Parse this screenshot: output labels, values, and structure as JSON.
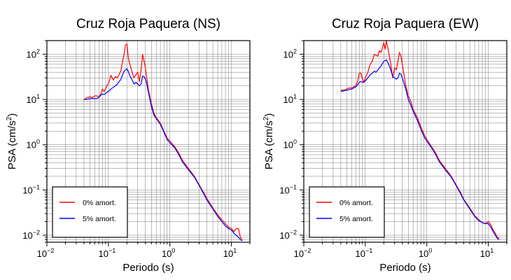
{
  "chart_data": [
    {
      "type": "line",
      "title": "Cruz Roja Paquera (NS)",
      "xlabel": "Periodo (s)",
      "ylabel": "PSA (cm/s",
      "ylabel_sup": "2",
      "ylabel_close": ")",
      "x_scale": "log",
      "y_scale": "log",
      "xlim": [
        0.01,
        20
      ],
      "ylim": [
        0.007,
        200
      ],
      "grid": true,
      "legend_placement": "bottom-left",
      "x_ticks": [
        {
          "value": 0.01,
          "base": "10",
          "exp": "−2"
        },
        {
          "value": 0.1,
          "base": "10",
          "exp": "−1"
        },
        {
          "value": 1,
          "base": "10",
          "exp": "0"
        },
        {
          "value": 10,
          "base": "10",
          "exp": "1"
        }
      ],
      "y_ticks": [
        {
          "value": 0.01,
          "base": "10",
          "exp": "−2"
        },
        {
          "value": 0.1,
          "base": "10",
          "exp": "−1"
        },
        {
          "value": 1,
          "base": "10",
          "exp": "0"
        },
        {
          "value": 10,
          "base": "10",
          "exp": "1"
        },
        {
          "value": 100,
          "base": "10",
          "exp": "2"
        }
      ],
      "series": [
        {
          "name": "0% amort.",
          "color": "#ff0000",
          "x": [
            0.04,
            0.045,
            0.05,
            0.055,
            0.06,
            0.065,
            0.07,
            0.075,
            0.08,
            0.085,
            0.09,
            0.095,
            0.1,
            0.11,
            0.12,
            0.13,
            0.14,
            0.15,
            0.16,
            0.17,
            0.18,
            0.19,
            0.2,
            0.21,
            0.22,
            0.24,
            0.26,
            0.28,
            0.3,
            0.32,
            0.34,
            0.36,
            0.38,
            0.4,
            0.42,
            0.45,
            0.5,
            0.55,
            0.6,
            0.7,
            0.8,
            0.9,
            1.0,
            1.2,
            1.4,
            1.6,
            2,
            2.5,
            3,
            3.5,
            4,
            5,
            6,
            7,
            8,
            9,
            10,
            11,
            12,
            13,
            14,
            15
          ],
          "y": [
            10,
            11,
            11.5,
            11,
            12,
            12,
            11.5,
            13,
            17,
            15,
            17,
            21,
            22,
            34,
            27,
            32,
            30,
            36,
            44,
            70,
            100,
            160,
            170,
            85,
            65,
            42,
            30,
            35,
            40,
            25,
            45,
            100,
            70,
            50,
            30,
            16,
            8,
            5,
            4,
            3,
            2,
            1.4,
            1.2,
            0.9,
            0.65,
            0.45,
            0.3,
            0.2,
            0.13,
            0.09,
            0.065,
            0.04,
            0.028,
            0.022,
            0.018,
            0.015,
            0.014,
            0.012,
            0.014,
            0.014,
            0.009,
            0.008
          ]
        },
        {
          "name": "5% amort.",
          "color": "#0000ff",
          "x": [
            0.04,
            0.045,
            0.05,
            0.055,
            0.06,
            0.065,
            0.07,
            0.075,
            0.08,
            0.085,
            0.09,
            0.095,
            0.1,
            0.11,
            0.12,
            0.13,
            0.14,
            0.15,
            0.16,
            0.17,
            0.18,
            0.19,
            0.2,
            0.21,
            0.22,
            0.24,
            0.26,
            0.28,
            0.3,
            0.32,
            0.34,
            0.36,
            0.38,
            0.4,
            0.42,
            0.45,
            0.5,
            0.55,
            0.6,
            0.7,
            0.8,
            0.9,
            1.0,
            1.2,
            1.4,
            1.6,
            2,
            2.5,
            3,
            3.5,
            4,
            5,
            6,
            7,
            8,
            9,
            10,
            11,
            12,
            13,
            14,
            15
          ],
          "y": [
            10,
            10,
            10.5,
            10.5,
            10.5,
            10.5,
            11,
            12.5,
            13,
            13,
            13.5,
            14.5,
            15,
            17,
            18.5,
            20,
            22,
            25,
            28,
            35,
            42,
            45,
            48,
            42,
            35,
            28,
            22,
            24,
            22,
            20,
            22,
            33,
            32,
            28,
            22,
            14,
            7,
            4.5,
            3.8,
            2.8,
            1.9,
            1.3,
            1.1,
            0.85,
            0.6,
            0.42,
            0.28,
            0.19,
            0.125,
            0.085,
            0.06,
            0.038,
            0.026,
            0.02,
            0.016,
            0.014,
            0.013,
            0.011,
            0.01,
            0.009,
            0.008,
            0.0075
          ]
        }
      ]
    },
    {
      "type": "line",
      "title": "Cruz Roja Paquera (EW)",
      "xlabel": "Periodo (s)",
      "ylabel": "PSA (cm/s",
      "ylabel_sup": "2",
      "ylabel_close": ")",
      "x_scale": "log",
      "y_scale": "log",
      "xlim": [
        0.01,
        20
      ],
      "ylim": [
        0.007,
        200
      ],
      "grid": true,
      "legend_placement": "bottom-left",
      "x_ticks": [
        {
          "value": 0.01,
          "base": "10",
          "exp": "−2"
        },
        {
          "value": 0.1,
          "base": "10",
          "exp": "−1"
        },
        {
          "value": 1,
          "base": "10",
          "exp": "0"
        },
        {
          "value": 10,
          "base": "10",
          "exp": "1"
        }
      ],
      "y_ticks": [
        {
          "value": 0.01,
          "base": "10",
          "exp": "−2"
        },
        {
          "value": 0.1,
          "base": "10",
          "exp": "−1"
        },
        {
          "value": 1,
          "base": "10",
          "exp": "0"
        },
        {
          "value": 10,
          "base": "10",
          "exp": "1"
        },
        {
          "value": 100,
          "base": "10",
          "exp": "2"
        }
      ],
      "series": [
        {
          "name": "0% amort.",
          "color": "#ff0000",
          "x": [
            0.04,
            0.045,
            0.05,
            0.055,
            0.06,
            0.065,
            0.07,
            0.075,
            0.08,
            0.085,
            0.09,
            0.095,
            0.1,
            0.11,
            0.12,
            0.13,
            0.14,
            0.15,
            0.16,
            0.17,
            0.18,
            0.19,
            0.2,
            0.21,
            0.22,
            0.24,
            0.26,
            0.28,
            0.3,
            0.32,
            0.34,
            0.36,
            0.38,
            0.4,
            0.42,
            0.45,
            0.5,
            0.55,
            0.6,
            0.7,
            0.8,
            0.9,
            1.0,
            1.2,
            1.4,
            1.6,
            2,
            2.5,
            3,
            3.5,
            4,
            5,
            6,
            7,
            8,
            9,
            10,
            11,
            12,
            13,
            14,
            15
          ],
          "y": [
            16,
            16,
            17,
            18,
            18,
            19,
            20,
            25,
            38,
            38,
            28,
            24,
            30,
            40,
            60,
            70,
            100,
            95,
            90,
            120,
            110,
            140,
            180,
            130,
            200,
            110,
            60,
            30,
            50,
            45,
            70,
            110,
            90,
            60,
            40,
            22,
            12,
            9,
            6,
            4,
            2.5,
            1.7,
            1.3,
            0.9,
            0.65,
            0.45,
            0.3,
            0.2,
            0.13,
            0.09,
            0.062,
            0.04,
            0.027,
            0.022,
            0.019,
            0.018,
            0.02,
            0.017,
            0.013,
            0.011,
            0.009,
            0.0085
          ]
        },
        {
          "name": "5% amort.",
          "color": "#0000ff",
          "x": [
            0.04,
            0.045,
            0.05,
            0.055,
            0.06,
            0.065,
            0.07,
            0.075,
            0.08,
            0.085,
            0.09,
            0.095,
            0.1,
            0.11,
            0.12,
            0.13,
            0.14,
            0.15,
            0.16,
            0.17,
            0.18,
            0.19,
            0.2,
            0.21,
            0.22,
            0.24,
            0.26,
            0.28,
            0.3,
            0.32,
            0.34,
            0.36,
            0.38,
            0.4,
            0.42,
            0.45,
            0.5,
            0.55,
            0.6,
            0.7,
            0.8,
            0.9,
            1.0,
            1.2,
            1.4,
            1.6,
            2,
            2.5,
            3,
            3.5,
            4,
            5,
            6,
            7,
            8,
            9,
            10,
            11,
            12,
            13,
            14,
            15
          ],
          "y": [
            15,
            15.5,
            16,
            16.5,
            17,
            18,
            19,
            21,
            24,
            25,
            24,
            24,
            26,
            30,
            35,
            38,
            42,
            40,
            45,
            50,
            55,
            62,
            70,
            72,
            75,
            60,
            45,
            32,
            30,
            28,
            30,
            38,
            36,
            30,
            24,
            18,
            10,
            7.5,
            5.5,
            3.5,
            2.2,
            1.5,
            1.2,
            0.85,
            0.6,
            0.42,
            0.28,
            0.19,
            0.125,
            0.085,
            0.06,
            0.038,
            0.026,
            0.021,
            0.019,
            0.018,
            0.018,
            0.015,
            0.012,
            0.01,
            0.0085,
            0.008
          ]
        }
      ]
    }
  ]
}
